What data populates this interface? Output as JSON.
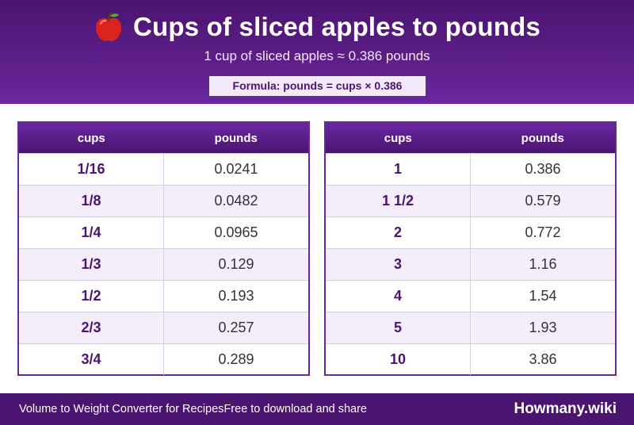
{
  "header": {
    "title": "Cups of sliced apples to pounds",
    "subtitle": "1 cup of sliced apples ≈ 0.386 pounds",
    "formula": "Formula: pounds = cups × 0.386",
    "icon": "apple-icon",
    "colors": {
      "primary": "#4a1470",
      "accent": "#6a27a0",
      "row_alt": "#f4eefa"
    }
  },
  "tables": [
    {
      "headers": [
        "cups",
        "pounds"
      ],
      "rows": [
        [
          "1/16",
          "0.0241"
        ],
        [
          "1/8",
          "0.0482"
        ],
        [
          "1/4",
          "0.0965"
        ],
        [
          "1/3",
          "0.129"
        ],
        [
          "1/2",
          "0.193"
        ],
        [
          "2/3",
          "0.257"
        ],
        [
          "3/4",
          "0.289"
        ]
      ]
    },
    {
      "headers": [
        "cups",
        "pounds"
      ],
      "rows": [
        [
          "1",
          "0.386"
        ],
        [
          "1 1/2",
          "0.579"
        ],
        [
          "2",
          "0.772"
        ],
        [
          "3",
          "1.16"
        ],
        [
          "4",
          "1.54"
        ],
        [
          "5",
          "1.93"
        ],
        [
          "10",
          "3.86"
        ]
      ]
    }
  ],
  "footer": {
    "left_text": "Volume to Weight Converter for Recipes",
    "left_sub": "Free to download and share",
    "brand": "Howmany.wiki"
  }
}
